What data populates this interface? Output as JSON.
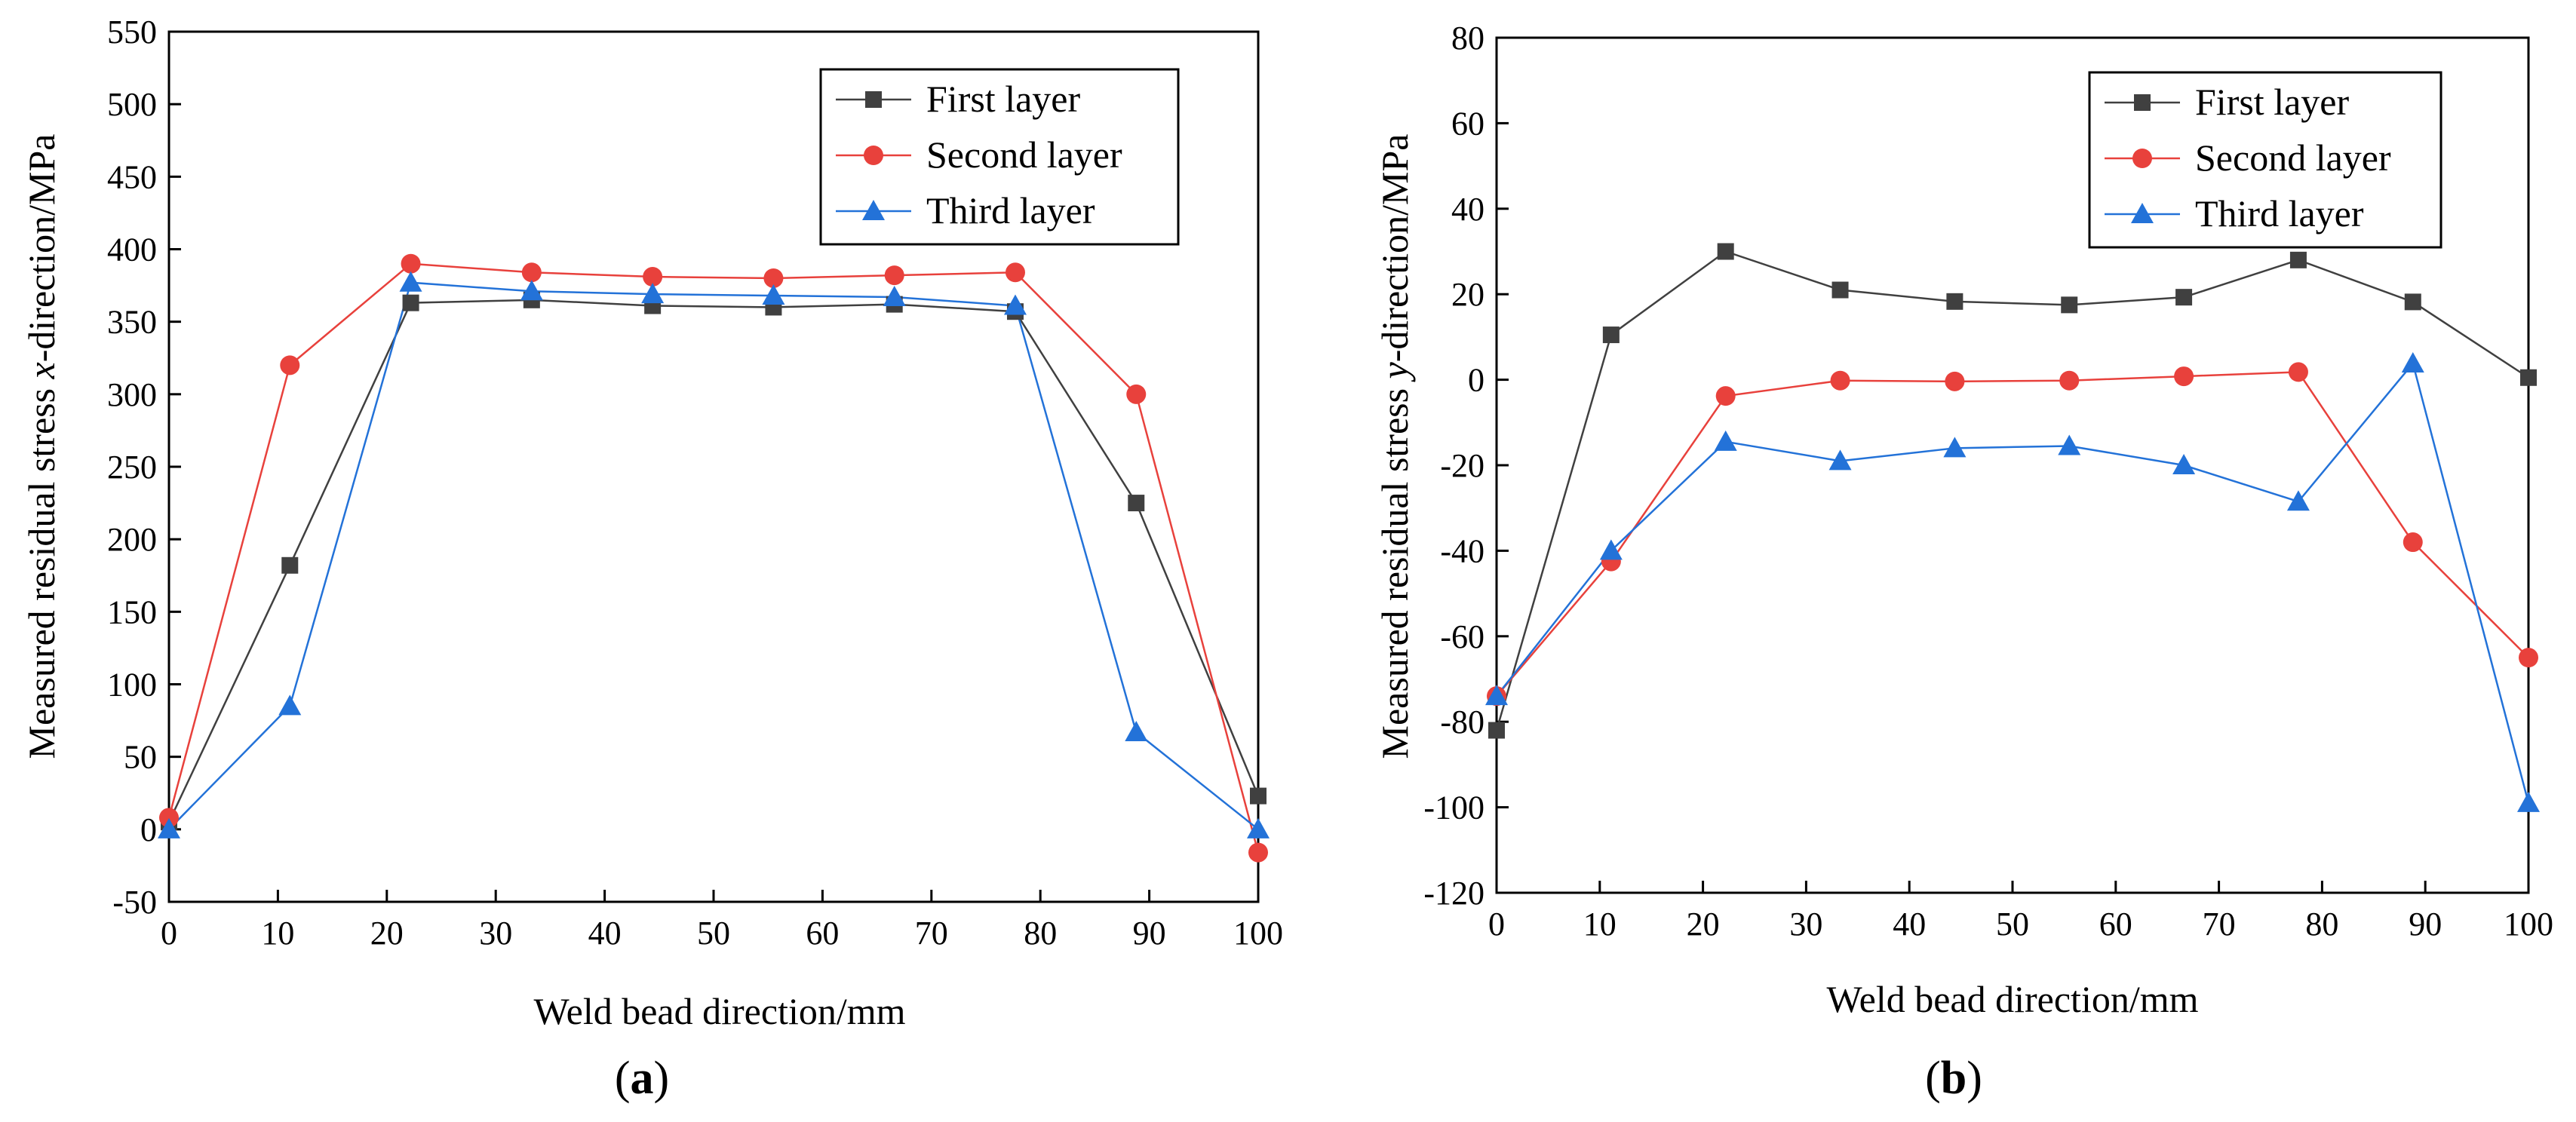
{
  "chart_data": [
    {
      "type": "line",
      "panel_label_prefix": "(",
      "panel_label": "a",
      "panel_label_suffix": ")",
      "xlabel": "Weld bead direction/mm",
      "ylabel_parts": [
        "Measured residual stress ",
        "x",
        "-direction/MPa"
      ],
      "xlim": [
        0,
        100
      ],
      "ylim": [
        -50,
        550
      ],
      "xticks": [
        0,
        10,
        20,
        30,
        40,
        50,
        60,
        70,
        80,
        90,
        100
      ],
      "yticks": [
        -50,
        0,
        50,
        100,
        150,
        200,
        250,
        300,
        350,
        400,
        450,
        500,
        550
      ],
      "legend_position": "top-right",
      "grid": false,
      "x": [
        0,
        11.1,
        22.2,
        33.3,
        44.4,
        55.5,
        66.6,
        77.7,
        88.8,
        100
      ],
      "series": [
        {
          "name": "First layer",
          "marker": "square",
          "color": "#404040",
          "values": [
            5,
            182,
            363,
            365,
            361,
            360,
            362,
            357,
            225,
            23
          ]
        },
        {
          "name": "Second layer",
          "marker": "circle",
          "color": "#e8413c",
          "values": [
            8,
            320,
            390,
            384,
            381,
            380,
            382,
            384,
            300,
            -16
          ]
        },
        {
          "name": "Third layer",
          "marker": "triangle",
          "color": "#2372d8",
          "values": [
            0,
            85,
            377,
            371,
            369,
            368,
            367,
            361,
            67,
            0
          ]
        }
      ]
    },
    {
      "type": "line",
      "panel_label_prefix": "(",
      "panel_label": "b",
      "panel_label_suffix": ")",
      "xlabel": "Weld bead direction/mm",
      "ylabel_parts": [
        "Measured residual stress ",
        "y",
        "-direction/MPa"
      ],
      "xlim": [
        0,
        100
      ],
      "ylim": [
        -120,
        80
      ],
      "xticks": [
        0,
        10,
        20,
        30,
        40,
        50,
        60,
        70,
        80,
        90,
        100
      ],
      "yticks": [
        -120,
        -100,
        -80,
        -60,
        -40,
        -20,
        0,
        20,
        40,
        60,
        80
      ],
      "legend_position": "top-right",
      "grid": false,
      "x": [
        0,
        11.1,
        22.2,
        33.3,
        44.4,
        55.5,
        66.6,
        77.7,
        88.8,
        100
      ],
      "series": [
        {
          "name": "First layer",
          "marker": "square",
          "color": "#404040",
          "values": [
            -82,
            10.5,
            30,
            21,
            18.3,
            17.5,
            19.3,
            28,
            18.2,
            0.5
          ]
        },
        {
          "name": "Second layer",
          "marker": "circle",
          "color": "#e8413c",
          "values": [
            -74,
            -42.5,
            -3.8,
            -0.2,
            -0.4,
            -0.2,
            0.8,
            1.8,
            -38,
            -65
          ]
        },
        {
          "name": "Third layer",
          "marker": "triangle",
          "color": "#2372d8",
          "values": [
            -74,
            -40,
            -14.5,
            -19,
            -16,
            -15.5,
            -20,
            -28.5,
            3.8,
            -99
          ]
        }
      ]
    }
  ]
}
